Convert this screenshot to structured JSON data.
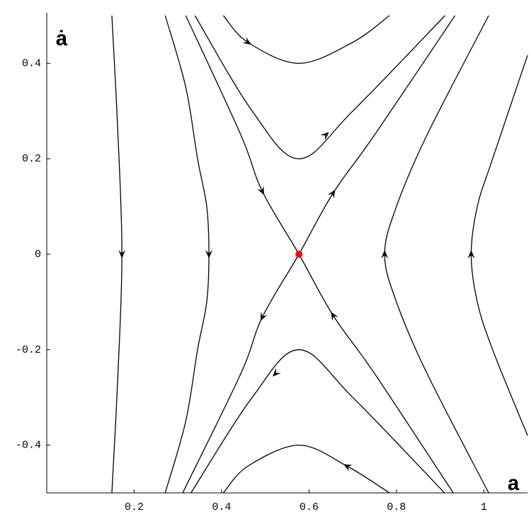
{
  "chart_data": {
    "type": "phase-portrait",
    "x_label": "a",
    "y_label": "ȧ",
    "xlim": [
      0,
      1.1
    ],
    "ylim": [
      -0.5,
      0.5
    ],
    "xticks": [
      0.2,
      0.4,
      0.6,
      0.8,
      1
    ],
    "yticks": [
      0.4,
      0.2,
      0,
      -0.2,
      -0.4
    ],
    "color": "#000000",
    "saddle": {
      "x": 0.577,
      "y": 0,
      "color": "#ff0000"
    },
    "series": [
      {
        "x": [
          0.149,
          0.163,
          0.172,
          0.163,
          0.149
        ],
        "values": [
          0.5,
          0.25,
          0,
          -0.25,
          -0.5
        ]
      },
      {
        "x": [
          0.271,
          0.318,
          0.345,
          0.366,
          0.371,
          0.366,
          0.345,
          0.318,
          0.271
        ],
        "values": [
          0.5,
          0.35,
          0.2,
          0.1,
          0,
          -0.1,
          -0.2,
          -0.35,
          -0.5
        ]
      },
      {
        "x": [
          0.318,
          0.444,
          0.493,
          0.577,
          0.655,
          0.75,
          0.93
        ],
        "values": [
          0.5,
          0.25,
          0.132,
          0,
          -0.128,
          -0.25,
          -0.5
        ]
      },
      {
        "x": [
          0.311,
          0.444,
          0.493,
          0.577,
          0.655,
          0.75,
          0.934
        ],
        "values": [
          -0.5,
          -0.25,
          -0.132,
          0,
          0.128,
          0.25,
          0.5
        ]
      },
      {
        "x": [
          0.339,
          0.47,
          0.577,
          0.7,
          0.911
        ],
        "values": [
          0.5,
          0.3,
          0.2,
          0.3,
          0.5
        ]
      },
      {
        "x": [
          0.33,
          0.47,
          0.577,
          0.7,
          0.91
        ],
        "values": [
          -0.5,
          -0.3,
          -0.2,
          -0.3,
          -0.5
        ]
      },
      {
        "x": [
          0.404,
          0.46,
          0.577,
          0.7,
          0.784
        ],
        "values": [
          0.5,
          0.444,
          0.4,
          0.444,
          0.5
        ]
      },
      {
        "x": [
          0.404,
          0.46,
          0.577,
          0.687,
          0.784
        ],
        "values": [
          -0.5,
          -0.444,
          -0.4,
          -0.444,
          -0.5
        ]
      },
      {
        "x": [
          1.011,
          0.87,
          0.8,
          0.773,
          0.8,
          0.87,
          1.011
        ],
        "values": [
          0.5,
          0.25,
          0.1,
          0,
          -0.1,
          -0.25,
          -0.5
        ]
      },
      {
        "x": [
          1.1,
          1.02,
          0.985,
          0.971,
          0.985,
          1.02,
          1.1
        ],
        "values": [
          0.417,
          0.2,
          0.1,
          0,
          -0.1,
          -0.2,
          -0.38
        ]
      }
    ]
  }
}
